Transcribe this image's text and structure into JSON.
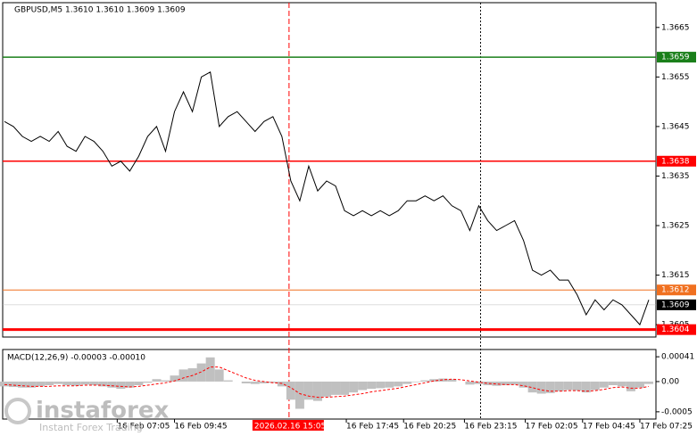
{
  "chart_data": [
    {
      "type": "line",
      "title": "GBPUSD,M5  1.3610 1.3610 1.3609 1.3609",
      "x": [
        1,
        6,
        11,
        16,
        21,
        26,
        31,
        36,
        41,
        46,
        51,
        56,
        61,
        66,
        71,
        76,
        81,
        86,
        91,
        96,
        101,
        106,
        111,
        116,
        121,
        126,
        131,
        136,
        141,
        146,
        151,
        156,
        161,
        166,
        171,
        176,
        181,
        186,
        191,
        196,
        201,
        206,
        211,
        216,
        221,
        226,
        231,
        236,
        241,
        246,
        251,
        256,
        261,
        266,
        271,
        276,
        281,
        286,
        291,
        296,
        301,
        306,
        311,
        316,
        321,
        326,
        331,
        336,
        341,
        346,
        351,
        356,
        361
      ],
      "series": [
        {
          "color": "#000000",
          "values": [
            1.3646,
            1.3645,
            1.3643,
            1.3642,
            1.3643,
            1.3642,
            1.3644,
            1.3641,
            1.364,
            1.3643,
            1.3642,
            1.364,
            1.3637,
            1.3638,
            1.3636,
            1.3639,
            1.3643,
            1.3645,
            1.364,
            1.3648,
            1.3652,
            1.3648,
            1.3655,
            1.3656,
            1.3645,
            1.3647,
            1.3648,
            1.3646,
            1.3644,
            1.3646,
            1.3647,
            1.3643,
            1.3634,
            1.363,
            1.3637,
            1.3632,
            1.3634,
            1.3633,
            1.3628,
            1.3627,
            1.3628,
            1.3627,
            1.3628,
            1.3627,
            1.3628,
            1.363,
            1.363,
            1.3631,
            1.363,
            1.3631,
            1.3629,
            1.3628,
            1.3624,
            1.3629,
            1.3626,
            1.3624,
            1.3625,
            1.3626,
            1.3622,
            1.3616,
            1.3615,
            1.3616,
            1.3614,
            1.3614,
            1.3611,
            1.3607,
            1.361,
            1.3608,
            1.361,
            1.3609,
            1.3607,
            1.3605,
            1.361
          ]
        }
      ],
      "xlim": [
        0,
        365
      ],
      "ylim": [
        1.36025,
        1.367
      ],
      "yticks": [
        1.3665,
        1.3655,
        1.3645,
        1.3635,
        1.3625,
        1.3615,
        1.3605
      ],
      "xticks": [
        {
          "value": 64,
          "label": "16 Feb 07:05"
        },
        {
          "value": 96,
          "label": "16 Feb 09:45"
        },
        {
          "value": 192,
          "label": "16 Feb 17:45"
        },
        {
          "value": 224,
          "label": "16 Feb 20:25"
        },
        {
          "value": 258,
          "label": "16 Feb 23:15"
        },
        {
          "value": 292,
          "label": "17 Feb 02:05"
        },
        {
          "value": 324,
          "label": "17 Feb 04:45"
        },
        {
          "value": 356,
          "label": "17 Feb 07:25"
        }
      ],
      "levels": [
        {
          "value": 1.3659,
          "color": "#1a7f1a"
        },
        {
          "value": 1.3638,
          "color": "#ff0000"
        },
        {
          "value": 1.3612,
          "color": "#f07020"
        },
        {
          "value": 1.3609,
          "color": "#000000"
        },
        {
          "value": 1.3604,
          "color": "#ff0000"
        }
      ],
      "crosshair": {
        "x": 160,
        "label": "2026.02.16 15:05",
        "color": "#ff0000"
      },
      "day_separator": 267
    },
    {
      "type": "bar",
      "title": "MACD(12,26,9) -0.00003 -0.00010",
      "x": [
        1,
        6,
        11,
        16,
        21,
        26,
        31,
        36,
        41,
        46,
        51,
        56,
        61,
        66,
        71,
        76,
        81,
        86,
        91,
        96,
        101,
        106,
        111,
        116,
        121,
        126,
        131,
        136,
        141,
        146,
        151,
        156,
        161,
        166,
        171,
        176,
        181,
        186,
        191,
        196,
        201,
        206,
        211,
        216,
        221,
        226,
        231,
        236,
        241,
        246,
        251,
        256,
        261,
        266,
        271,
        276,
        281,
        286,
        291,
        296,
        301,
        306,
        311,
        316,
        321,
        326,
        331,
        336,
        341,
        346,
        351,
        356,
        361
      ],
      "series": [
        {
          "type": "bar",
          "color": "#c0c0c0",
          "values": [
            -8e-05,
            -9e-05,
            -0.0001,
            -0.0001,
            -8e-05,
            -6e-05,
            -4e-05,
            -6e-05,
            -7e-05,
            -5e-05,
            -6e-05,
            -8e-05,
            -0.0001,
            -0.00012,
            -0.0001,
            -6e-05,
            -2e-05,
            4e-05,
            2e-05,
            0.0001,
            0.0002,
            0.00022,
            0.0003,
            0.0004,
            0.0002,
            2e-05,
            0.0,
            -3e-05,
            -4e-05,
            -3e-05,
            -2e-05,
            -8e-05,
            -0.0003,
            -0.00045,
            -0.0003,
            -0.00032,
            -0.00025,
            -0.00022,
            -0.00022,
            -0.00018,
            -0.00014,
            -0.00012,
            -0.00011,
            -0.0001,
            -8e-05,
            -4e-05,
            -1e-05,
            2e-05,
            4e-05,
            5e-05,
            4e-05,
            0.0,
            -5e-05,
            -4e-05,
            -6e-05,
            -7e-05,
            -6e-05,
            -5e-05,
            -0.0001,
            -0.00018,
            -0.0002,
            -0.00019,
            -0.00016,
            -0.00014,
            -0.00015,
            -0.00018,
            -0.00014,
            -0.0001,
            -6e-05,
            -8e-05,
            -0.00016,
            -0.0001,
            -4e-05
          ]
        },
        {
          "type": "line",
          "color": "#ff0000",
          "values": [
            -5e-05,
            -6e-05,
            -7e-05,
            -8e-05,
            -8e-05,
            -8e-05,
            -7e-05,
            -7e-05,
            -7e-05,
            -6e-05,
            -6e-05,
            -6e-05,
            -7e-05,
            -8e-05,
            -9e-05,
            -8e-05,
            -6e-05,
            -4e-05,
            -2e-05,
            1e-05,
            6e-05,
            0.0001,
            0.00016,
            0.00024,
            0.00024,
            0.00018,
            0.00012,
            6e-05,
            2e-05,
            0.0,
            -2e-05,
            -3e-05,
            -0.0001,
            -0.0002,
            -0.00024,
            -0.00026,
            -0.00026,
            -0.00025,
            -0.00024,
            -0.00022,
            -0.0002,
            -0.00017,
            -0.00015,
            -0.00013,
            -0.00011,
            -8e-05,
            -5e-05,
            -2e-05,
            1e-05,
            3e-05,
            4e-05,
            3e-05,
            1e-05,
            -1e-05,
            -3e-05,
            -4e-05,
            -5e-05,
            -5e-05,
            -7e-05,
            -0.0001,
            -0.00014,
            -0.00016,
            -0.00016,
            -0.00015,
            -0.00015,
            -0.00016,
            -0.00015,
            -0.00013,
            -0.0001,
            -9e-05,
            -0.00011,
            -0.00011,
            -8e-05
          ]
        }
      ],
      "xlim": [
        0,
        365
      ],
      "ylim": [
        -0.00062,
        0.00053
      ],
      "yticks": [
        0.00041,
        {
          "value": 0,
          "label": "0.00"
        },
        -0.0005
      ]
    }
  ],
  "logo": {
    "name": "instaforex",
    "tagline": "Instant Forex Trading"
  }
}
